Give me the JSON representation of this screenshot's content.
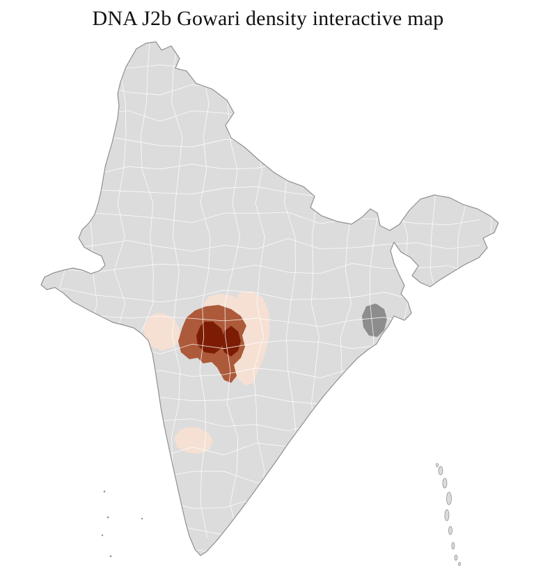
{
  "page": {
    "title": "DNA J2b Gowari density interactive map"
  },
  "map": {
    "region": "India districts choropleth",
    "base_fill": "#dcdcdc",
    "district_border_color": "#ffffff",
    "outline_color": "#8f8f8f",
    "no_data_fill": "#8d8d8d",
    "density_scale": {
      "low": "#f5e0d3",
      "medium": "#ad5a3a",
      "high": "#7d1c04"
    }
  }
}
